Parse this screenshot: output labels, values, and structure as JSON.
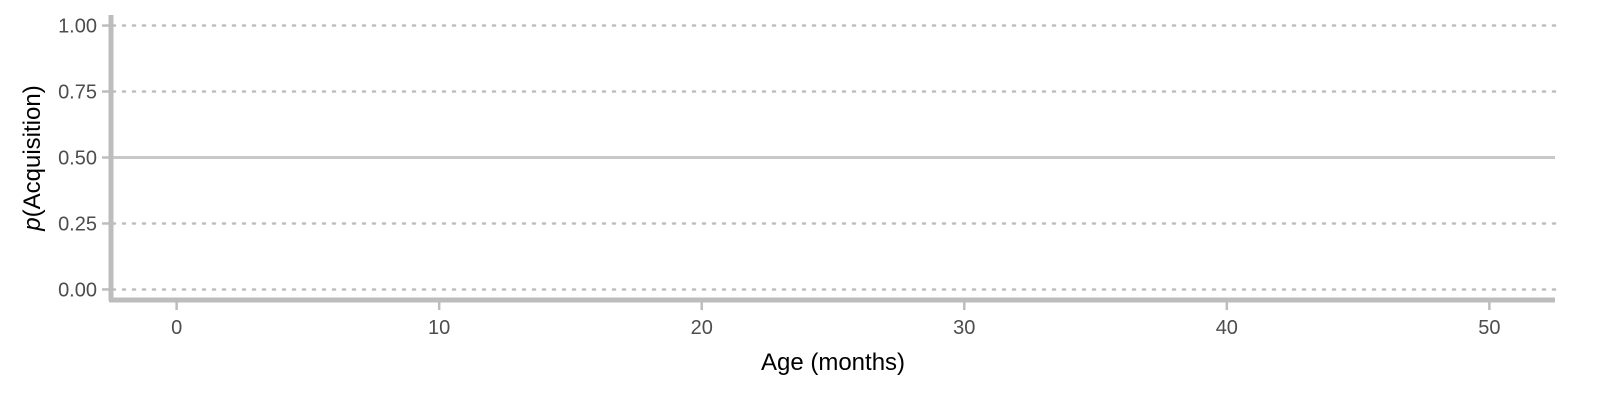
{
  "chart_data": {
    "type": "line",
    "title": "",
    "xlabel": "Age (months)",
    "ylabel_prefix": "p",
    "ylabel_suffix": "(Acquisition)",
    "xlim": [
      -2.5,
      52.5
    ],
    "ylim": [
      -0.04,
      1.04
    ],
    "x_ticks": [
      0,
      10,
      20,
      30,
      40,
      50
    ],
    "y_ticks": [
      0.0,
      0.25,
      0.5,
      0.75,
      1.0
    ],
    "x_tick_labels": [
      "0",
      "10",
      "20",
      "30",
      "40",
      "50"
    ],
    "y_tick_labels": [
      "0.00",
      "0.25",
      "0.50",
      "0.75",
      "1.00"
    ],
    "reference_lines": [
      {
        "y": 0.5,
        "style": "solid"
      }
    ],
    "grid": {
      "horizontal": "dotted",
      "vertical": false
    },
    "series": [],
    "colors": {
      "axis": "#bdbdbd",
      "grid": "#bdbdbd",
      "reference": "#c8c8c8",
      "tick_text": "#4d4d4d",
      "title_text": "#000000"
    }
  }
}
